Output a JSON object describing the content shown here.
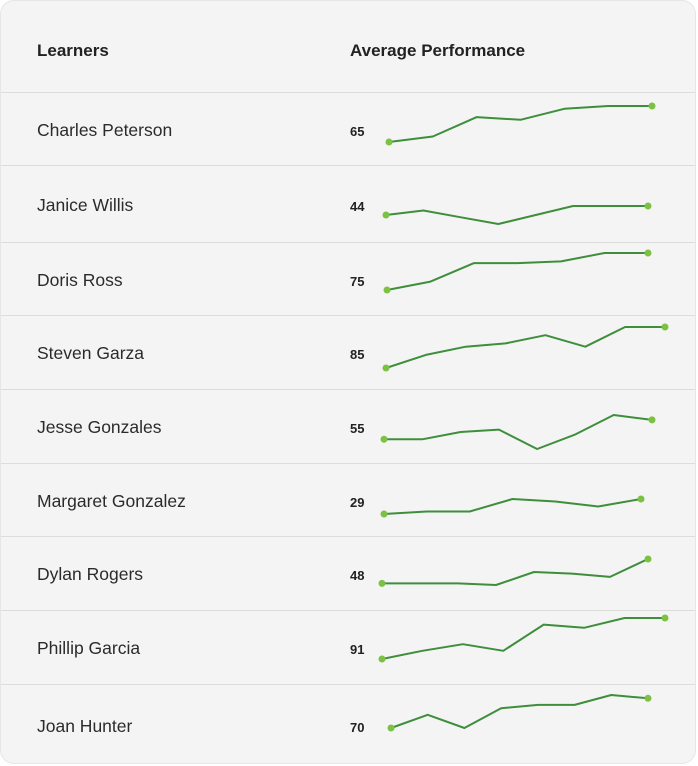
{
  "header": {
    "learners_label": "Learners",
    "performance_label": "Average Performance"
  },
  "colors": {
    "line": "#3e8e3c",
    "dot": "#7cc143",
    "background": "#f4f4f4",
    "divider": "#dcdcdc"
  },
  "rows": [
    {
      "name": "Charles Peterson",
      "score": "65",
      "trend": [
        60,
        62,
        69,
        68,
        72,
        73,
        73
      ]
    },
    {
      "name": "Janice Willis",
      "score": "44",
      "trend": [
        42,
        44,
        41,
        38,
        42,
        46,
        46,
        46
      ]
    },
    {
      "name": "Doris Ross",
      "score": "75",
      "trend": [
        60,
        65,
        76,
        76,
        77,
        82,
        82
      ]
    },
    {
      "name": "Steven Garza",
      "score": "85",
      "trend": [
        50,
        58,
        63,
        65,
        70,
        63,
        75,
        75
      ]
    },
    {
      "name": "Jesse Gonzales",
      "score": "55",
      "trend": [
        52,
        52,
        55,
        56,
        48,
        54,
        62,
        60
      ]
    },
    {
      "name": "Margaret Gonzalez",
      "score": "29",
      "trend": [
        24,
        25,
        25,
        30,
        29,
        27,
        30
      ]
    },
    {
      "name": "Dylan Rogers",
      "score": "48",
      "trend": [
        40,
        40,
        40,
        39,
        47,
        46,
        44,
        55
      ]
    },
    {
      "name": "Phillip Garcia",
      "score": "91",
      "trend": [
        65,
        70,
        74,
        70,
        86,
        84,
        90,
        90
      ]
    },
    {
      "name": "Joan Hunter",
      "score": "70",
      "trend": [
        52,
        56,
        52,
        58,
        59,
        59,
        62,
        61
      ]
    }
  ]
}
